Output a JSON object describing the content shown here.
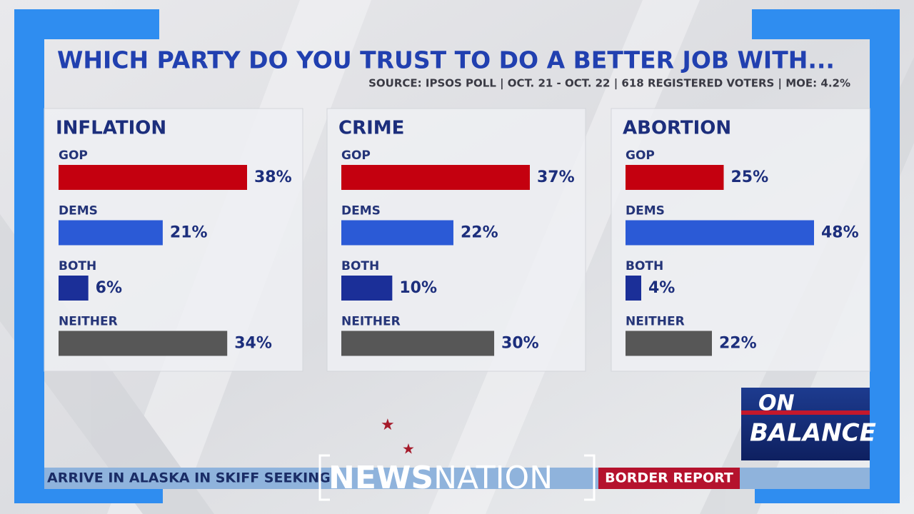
{
  "header": {
    "title": "WHICH PARTY DO YOU TRUST TO DO A BETTER JOB WITH...",
    "source": "SOURCE: IPSOS POLL | OCT. 21 - OCT. 22 | 618 REGISTERED VOTERS | MOE: 4.2%"
  },
  "chart_data": [
    {
      "type": "bar",
      "title": "INFLATION",
      "categories": [
        "GOP",
        "DEMS",
        "BOTH",
        "NEITHER"
      ],
      "values": [
        38,
        21,
        6,
        34
      ],
      "value_labels": [
        "38%",
        "21%",
        "6%",
        "34%"
      ],
      "colors": [
        "#c4000f",
        "#2b5ad6",
        "#1b2f98",
        "#575757"
      ]
    },
    {
      "type": "bar",
      "title": "CRIME",
      "categories": [
        "GOP",
        "DEMS",
        "BOTH",
        "NEITHER"
      ],
      "values": [
        37,
        22,
        10,
        30
      ],
      "value_labels": [
        "37%",
        "22%",
        "10%",
        "30%"
      ],
      "colors": [
        "#c4000f",
        "#2b5ad6",
        "#1b2f98",
        "#575757"
      ]
    },
    {
      "type": "bar",
      "title": "ABORTION",
      "categories": [
        "GOP",
        "DEMS",
        "BOTH",
        "NEITHER"
      ],
      "values": [
        25,
        48,
        4,
        22
      ],
      "value_labels": [
        "25%",
        "48%",
        "4%",
        "22%"
      ],
      "colors": [
        "#c4000f",
        "#2b5ad6",
        "#1b2f98",
        "#575757"
      ]
    }
  ],
  "ticker": {
    "headline": "ARRIVE IN ALASKA IN SKIFF SEEKING",
    "segment": "BORDER REPORT"
  },
  "show_logo": {
    "line1": "ON",
    "line2": "BALANCE"
  },
  "network_logo": {
    "part1": "NEWS",
    "part2": "NATION"
  }
}
